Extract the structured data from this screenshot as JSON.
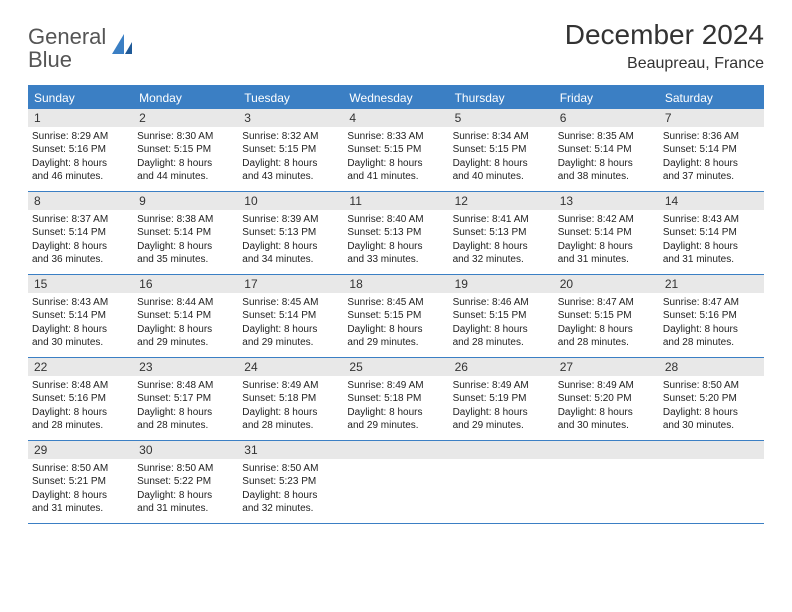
{
  "brand": {
    "word1": "General",
    "word2": "Blue"
  },
  "title": "December 2024",
  "location": "Beaupreau, France",
  "colors": {
    "accent": "#3b7fc4",
    "header_bg": "#3b7fc4",
    "header_text": "#ffffff",
    "daynum_bg": "#e8e8e8",
    "text": "#222222",
    "background": "#ffffff"
  },
  "typography": {
    "title_fontsize": 28,
    "location_fontsize": 16,
    "dayhead_fontsize": 12,
    "body_fontsize": 10
  },
  "layout": {
    "columns": 7,
    "rows": 5
  },
  "day_names": [
    "Sunday",
    "Monday",
    "Tuesday",
    "Wednesday",
    "Thursday",
    "Friday",
    "Saturday"
  ],
  "weeks": [
    [
      {
        "n": "1",
        "sunrise": "Sunrise: 8:29 AM",
        "sunset": "Sunset: 5:16 PM",
        "d1": "Daylight: 8 hours",
        "d2": "and 46 minutes."
      },
      {
        "n": "2",
        "sunrise": "Sunrise: 8:30 AM",
        "sunset": "Sunset: 5:15 PM",
        "d1": "Daylight: 8 hours",
        "d2": "and 44 minutes."
      },
      {
        "n": "3",
        "sunrise": "Sunrise: 8:32 AM",
        "sunset": "Sunset: 5:15 PM",
        "d1": "Daylight: 8 hours",
        "d2": "and 43 minutes."
      },
      {
        "n": "4",
        "sunrise": "Sunrise: 8:33 AM",
        "sunset": "Sunset: 5:15 PM",
        "d1": "Daylight: 8 hours",
        "d2": "and 41 minutes."
      },
      {
        "n": "5",
        "sunrise": "Sunrise: 8:34 AM",
        "sunset": "Sunset: 5:15 PM",
        "d1": "Daylight: 8 hours",
        "d2": "and 40 minutes."
      },
      {
        "n": "6",
        "sunrise": "Sunrise: 8:35 AM",
        "sunset": "Sunset: 5:14 PM",
        "d1": "Daylight: 8 hours",
        "d2": "and 38 minutes."
      },
      {
        "n": "7",
        "sunrise": "Sunrise: 8:36 AM",
        "sunset": "Sunset: 5:14 PM",
        "d1": "Daylight: 8 hours",
        "d2": "and 37 minutes."
      }
    ],
    [
      {
        "n": "8",
        "sunrise": "Sunrise: 8:37 AM",
        "sunset": "Sunset: 5:14 PM",
        "d1": "Daylight: 8 hours",
        "d2": "and 36 minutes."
      },
      {
        "n": "9",
        "sunrise": "Sunrise: 8:38 AM",
        "sunset": "Sunset: 5:14 PM",
        "d1": "Daylight: 8 hours",
        "d2": "and 35 minutes."
      },
      {
        "n": "10",
        "sunrise": "Sunrise: 8:39 AM",
        "sunset": "Sunset: 5:13 PM",
        "d1": "Daylight: 8 hours",
        "d2": "and 34 minutes."
      },
      {
        "n": "11",
        "sunrise": "Sunrise: 8:40 AM",
        "sunset": "Sunset: 5:13 PM",
        "d1": "Daylight: 8 hours",
        "d2": "and 33 minutes."
      },
      {
        "n": "12",
        "sunrise": "Sunrise: 8:41 AM",
        "sunset": "Sunset: 5:13 PM",
        "d1": "Daylight: 8 hours",
        "d2": "and 32 minutes."
      },
      {
        "n": "13",
        "sunrise": "Sunrise: 8:42 AM",
        "sunset": "Sunset: 5:14 PM",
        "d1": "Daylight: 8 hours",
        "d2": "and 31 minutes."
      },
      {
        "n": "14",
        "sunrise": "Sunrise: 8:43 AM",
        "sunset": "Sunset: 5:14 PM",
        "d1": "Daylight: 8 hours",
        "d2": "and 31 minutes."
      }
    ],
    [
      {
        "n": "15",
        "sunrise": "Sunrise: 8:43 AM",
        "sunset": "Sunset: 5:14 PM",
        "d1": "Daylight: 8 hours",
        "d2": "and 30 minutes."
      },
      {
        "n": "16",
        "sunrise": "Sunrise: 8:44 AM",
        "sunset": "Sunset: 5:14 PM",
        "d1": "Daylight: 8 hours",
        "d2": "and 29 minutes."
      },
      {
        "n": "17",
        "sunrise": "Sunrise: 8:45 AM",
        "sunset": "Sunset: 5:14 PM",
        "d1": "Daylight: 8 hours",
        "d2": "and 29 minutes."
      },
      {
        "n": "18",
        "sunrise": "Sunrise: 8:45 AM",
        "sunset": "Sunset: 5:15 PM",
        "d1": "Daylight: 8 hours",
        "d2": "and 29 minutes."
      },
      {
        "n": "19",
        "sunrise": "Sunrise: 8:46 AM",
        "sunset": "Sunset: 5:15 PM",
        "d1": "Daylight: 8 hours",
        "d2": "and 28 minutes."
      },
      {
        "n": "20",
        "sunrise": "Sunrise: 8:47 AM",
        "sunset": "Sunset: 5:15 PM",
        "d1": "Daylight: 8 hours",
        "d2": "and 28 minutes."
      },
      {
        "n": "21",
        "sunrise": "Sunrise: 8:47 AM",
        "sunset": "Sunset: 5:16 PM",
        "d1": "Daylight: 8 hours",
        "d2": "and 28 minutes."
      }
    ],
    [
      {
        "n": "22",
        "sunrise": "Sunrise: 8:48 AM",
        "sunset": "Sunset: 5:16 PM",
        "d1": "Daylight: 8 hours",
        "d2": "and 28 minutes."
      },
      {
        "n": "23",
        "sunrise": "Sunrise: 8:48 AM",
        "sunset": "Sunset: 5:17 PM",
        "d1": "Daylight: 8 hours",
        "d2": "and 28 minutes."
      },
      {
        "n": "24",
        "sunrise": "Sunrise: 8:49 AM",
        "sunset": "Sunset: 5:18 PM",
        "d1": "Daylight: 8 hours",
        "d2": "and 28 minutes."
      },
      {
        "n": "25",
        "sunrise": "Sunrise: 8:49 AM",
        "sunset": "Sunset: 5:18 PM",
        "d1": "Daylight: 8 hours",
        "d2": "and 29 minutes."
      },
      {
        "n": "26",
        "sunrise": "Sunrise: 8:49 AM",
        "sunset": "Sunset: 5:19 PM",
        "d1": "Daylight: 8 hours",
        "d2": "and 29 minutes."
      },
      {
        "n": "27",
        "sunrise": "Sunrise: 8:49 AM",
        "sunset": "Sunset: 5:20 PM",
        "d1": "Daylight: 8 hours",
        "d2": "and 30 minutes."
      },
      {
        "n": "28",
        "sunrise": "Sunrise: 8:50 AM",
        "sunset": "Sunset: 5:20 PM",
        "d1": "Daylight: 8 hours",
        "d2": "and 30 minutes."
      }
    ],
    [
      {
        "n": "29",
        "sunrise": "Sunrise: 8:50 AM",
        "sunset": "Sunset: 5:21 PM",
        "d1": "Daylight: 8 hours",
        "d2": "and 31 minutes."
      },
      {
        "n": "30",
        "sunrise": "Sunrise: 8:50 AM",
        "sunset": "Sunset: 5:22 PM",
        "d1": "Daylight: 8 hours",
        "d2": "and 31 minutes."
      },
      {
        "n": "31",
        "sunrise": "Sunrise: 8:50 AM",
        "sunset": "Sunset: 5:23 PM",
        "d1": "Daylight: 8 hours",
        "d2": "and 32 minutes."
      },
      {
        "n": "",
        "sunrise": "",
        "sunset": "",
        "d1": "",
        "d2": "",
        "empty": true
      },
      {
        "n": "",
        "sunrise": "",
        "sunset": "",
        "d1": "",
        "d2": "",
        "empty": true
      },
      {
        "n": "",
        "sunrise": "",
        "sunset": "",
        "d1": "",
        "d2": "",
        "empty": true
      },
      {
        "n": "",
        "sunrise": "",
        "sunset": "",
        "d1": "",
        "d2": "",
        "empty": true
      }
    ]
  ]
}
